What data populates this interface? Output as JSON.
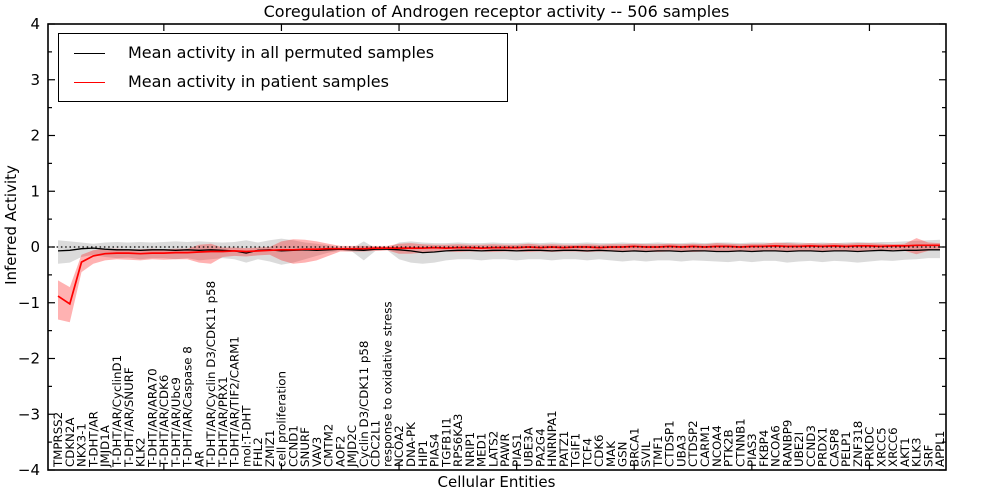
{
  "chart_data": {
    "type": "line",
    "title": "Coregulation of Androgen receptor activity -- 506 samples",
    "xlabel": "Cellular Entities",
    "ylabel": "Inferred Activity",
    "ylim": [
      -4,
      4
    ],
    "yticks": [
      -4,
      -3,
      -2,
      -1,
      0,
      1,
      2,
      3,
      4
    ],
    "zero_reference_line": 0,
    "grid": false,
    "legend_position": "upper left",
    "x_major_tick_positions": [
      10,
      20,
      30,
      40,
      50,
      60,
      70
    ],
    "categories": [
      "TMPRSS2",
      "CDKN2A",
      "NKX3-1",
      "T-DHT/AR",
      "JMJD1A",
      "T-DHT/AR/CyclinD1",
      "T-DHT/AR/SNURF",
      "KLK2",
      "T-DHT/AR/ARA70",
      "T-DHT/AR/CDK6",
      "T-DHT/AR/Ubc9",
      "T-DHT/AR/Caspase 8",
      "AR",
      "T-DHT/AR/Cyclin D3/CDK11 p58",
      "T-DHT/AR/PRX1",
      "T-DHT/AR/TIF2/CARM1",
      "mol:T-DHT",
      "FHL2",
      "ZMIZ1",
      "cell proliferation",
      "CCND1",
      "SNURF",
      "VAV3",
      "CMTM2",
      "AOF2",
      "JMJD2C",
      "Cyclin D3/CDK11 p58",
      "CDC2L1",
      "response to oxidative stress",
      "NCOA2",
      "DNA-PK",
      "HIP1",
      "PIAS4",
      "TGFB1I1",
      "RPS6KA3",
      "NRIP1",
      "MED1",
      "LATS2",
      "PAWR",
      "PIAS1",
      "UBE3A",
      "PA2G4",
      "HNRNPA1",
      "PATZ1",
      "TGIF1",
      "TCF4",
      "CDK6",
      "MAK",
      "GSN",
      "BRCA1",
      "SVIL",
      "TMF1",
      "CTDSP1",
      "UBA3",
      "CTDSP2",
      "CARM1",
      "NCOA4",
      "PTK2B",
      "CTNNB1",
      "PIAS3",
      "FKBP4",
      "NCOA6",
      "RANBP9",
      "UBE2I",
      "CCND3",
      "PRDX1",
      "CASP8",
      "PELP1",
      "ZNF318",
      "PRKDC",
      "XRCC5",
      "XRCC6",
      "AKT1",
      "KLK3",
      "SRF",
      "APPL1"
    ],
    "series": [
      {
        "name": "Mean activity in all permuted samples",
        "color": "#000000",
        "band_color": "rgba(0,0,0,0.14)",
        "values": [
          -0.07,
          -0.06,
          -0.03,
          -0.02,
          -0.04,
          -0.05,
          -0.05,
          -0.06,
          -0.05,
          -0.05,
          -0.06,
          -0.05,
          -0.06,
          -0.05,
          -0.06,
          -0.07,
          -0.11,
          -0.06,
          -0.05,
          -0.07,
          -0.06,
          -0.05,
          -0.06,
          -0.05,
          -0.04,
          -0.05,
          -0.06,
          -0.04,
          -0.04,
          -0.05,
          -0.07,
          -0.1,
          -0.09,
          -0.07,
          -0.06,
          -0.06,
          -0.07,
          -0.06,
          -0.06,
          -0.07,
          -0.06,
          -0.06,
          -0.07,
          -0.06,
          -0.06,
          -0.07,
          -0.06,
          -0.07,
          -0.08,
          -0.07,
          -0.08,
          -0.07,
          -0.07,
          -0.08,
          -0.07,
          -0.07,
          -0.08,
          -0.08,
          -0.07,
          -0.08,
          -0.07,
          -0.07,
          -0.08,
          -0.07,
          -0.07,
          -0.08,
          -0.07,
          -0.07,
          -0.08,
          -0.07,
          -0.06,
          -0.07,
          -0.06,
          -0.06,
          -0.05,
          -0.05
        ],
        "band_upper": [
          0.12,
          0.1,
          0.08,
          0.06,
          0.08,
          0.09,
          0.08,
          0.09,
          0.08,
          0.09,
          0.1,
          0.09,
          0.1,
          0.09,
          0.08,
          0.09,
          0.12,
          0.08,
          0.12,
          0.15,
          0.12,
          0.08,
          0.06,
          0.03,
          -0.02,
          -0.02,
          0.1,
          -0.02,
          -0.02,
          0.08,
          0.1,
          0.08,
          0.07,
          0.07,
          0.08,
          0.07,
          0.07,
          0.08,
          0.07,
          0.07,
          0.08,
          0.07,
          0.08,
          0.07,
          0.07,
          0.08,
          0.07,
          0.07,
          0.08,
          0.07,
          0.07,
          0.08,
          0.07,
          0.07,
          0.08,
          0.07,
          0.08,
          0.08,
          0.07,
          0.08,
          0.08,
          0.07,
          0.09,
          0.08,
          0.07,
          0.08,
          0.07,
          0.08,
          0.09,
          0.08,
          0.09,
          0.09,
          0.1,
          0.11,
          0.12,
          0.13
        ],
        "band_lower": [
          -0.3,
          -0.28,
          -0.18,
          -0.14,
          -0.18,
          -0.2,
          -0.19,
          -0.22,
          -0.2,
          -0.2,
          -0.22,
          -0.2,
          -0.24,
          -0.22,
          -0.2,
          -0.22,
          -0.28,
          -0.22,
          -0.26,
          -0.32,
          -0.28,
          -0.22,
          -0.16,
          -0.1,
          -0.07,
          -0.08,
          -0.24,
          -0.07,
          -0.06,
          -0.22,
          -0.28,
          -0.3,
          -0.28,
          -0.24,
          -0.22,
          -0.22,
          -0.24,
          -0.22,
          -0.22,
          -0.24,
          -0.22,
          -0.22,
          -0.24,
          -0.22,
          -0.22,
          -0.24,
          -0.22,
          -0.24,
          -0.26,
          -0.24,
          -0.26,
          -0.24,
          -0.24,
          -0.26,
          -0.24,
          -0.25,
          -0.26,
          -0.27,
          -0.25,
          -0.27,
          -0.25,
          -0.25,
          -0.28,
          -0.26,
          -0.25,
          -0.27,
          -0.25,
          -0.26,
          -0.28,
          -0.26,
          -0.24,
          -0.25,
          -0.23,
          -0.22,
          -0.2,
          -0.2
        ]
      },
      {
        "name": "Mean activity in patient samples",
        "color": "#ff0000",
        "band_color": "rgba(255,0,0,0.30)",
        "values": [
          -0.88,
          -1.02,
          -0.27,
          -0.16,
          -0.12,
          -0.11,
          -0.11,
          -0.12,
          -0.11,
          -0.11,
          -0.1,
          -0.1,
          -0.09,
          -0.08,
          -0.08,
          -0.07,
          -0.08,
          -0.07,
          -0.06,
          -0.05,
          -0.05,
          -0.04,
          -0.04,
          -0.03,
          -0.03,
          -0.03,
          -0.03,
          -0.02,
          -0.02,
          -0.02,
          -0.02,
          -0.02,
          -0.01,
          -0.02,
          -0.01,
          -0.01,
          -0.02,
          -0.01,
          -0.01,
          -0.01,
          0.0,
          -0.01,
          0.0,
          -0.01,
          0.0,
          0.0,
          -0.01,
          0.0,
          0.0,
          0.01,
          0.0,
          0.0,
          0.01,
          0.0,
          0.01,
          0.0,
          0.01,
          0.01,
          0.0,
          0.01,
          0.01,
          0.02,
          0.01,
          0.01,
          0.02,
          0.01,
          0.02,
          0.01,
          0.02,
          0.02,
          0.01,
          0.02,
          0.02,
          0.03,
          0.03,
          0.03
        ],
        "band_upper": [
          -0.6,
          -0.72,
          -0.14,
          -0.06,
          -0.03,
          -0.03,
          -0.04,
          -0.04,
          -0.03,
          -0.04,
          -0.03,
          -0.03,
          0.04,
          0.06,
          -0.01,
          -0.01,
          -0.02,
          -0.01,
          0.0,
          0.1,
          0.14,
          0.13,
          0.1,
          0.06,
          0.02,
          0.02,
          0.02,
          0.02,
          0.02,
          0.06,
          0.07,
          0.05,
          0.04,
          0.04,
          0.05,
          0.04,
          0.04,
          0.05,
          0.04,
          0.04,
          0.06,
          0.04,
          0.05,
          0.04,
          0.04,
          0.05,
          0.04,
          0.05,
          0.05,
          0.06,
          0.05,
          0.05,
          0.06,
          0.05,
          0.06,
          0.05,
          0.07,
          0.06,
          0.05,
          0.06,
          0.06,
          0.08,
          0.07,
          0.06,
          0.07,
          0.06,
          0.07,
          0.06,
          0.07,
          0.07,
          0.06,
          0.05,
          0.06,
          0.16,
          0.08,
          0.07
        ],
        "band_lower": [
          -1.3,
          -1.35,
          -0.45,
          -0.3,
          -0.24,
          -0.22,
          -0.23,
          -0.24,
          -0.22,
          -0.23,
          -0.22,
          -0.22,
          -0.28,
          -0.3,
          -0.18,
          -0.16,
          -0.17,
          -0.15,
          -0.14,
          -0.24,
          -0.3,
          -0.28,
          -0.24,
          -0.16,
          -0.08,
          -0.08,
          -0.08,
          -0.07,
          -0.06,
          -0.12,
          -0.12,
          -0.1,
          -0.08,
          -0.08,
          -0.09,
          -0.08,
          -0.08,
          -0.09,
          -0.08,
          -0.08,
          -0.09,
          -0.08,
          -0.09,
          -0.08,
          -0.08,
          -0.09,
          -0.08,
          -0.08,
          -0.09,
          -0.08,
          -0.08,
          -0.09,
          -0.08,
          -0.08,
          -0.09,
          -0.08,
          -0.08,
          -0.09,
          -0.08,
          -0.08,
          -0.08,
          -0.07,
          -0.08,
          -0.07,
          -0.07,
          -0.08,
          -0.07,
          -0.07,
          -0.08,
          -0.07,
          -0.07,
          -0.06,
          -0.07,
          -0.13,
          -0.07,
          -0.04
        ]
      }
    ]
  },
  "legend": {
    "items": [
      {
        "label": "Mean activity in all permuted samples",
        "color": "#000000"
      },
      {
        "label": "Mean activity in patient samples",
        "color": "#ff0000"
      }
    ]
  }
}
